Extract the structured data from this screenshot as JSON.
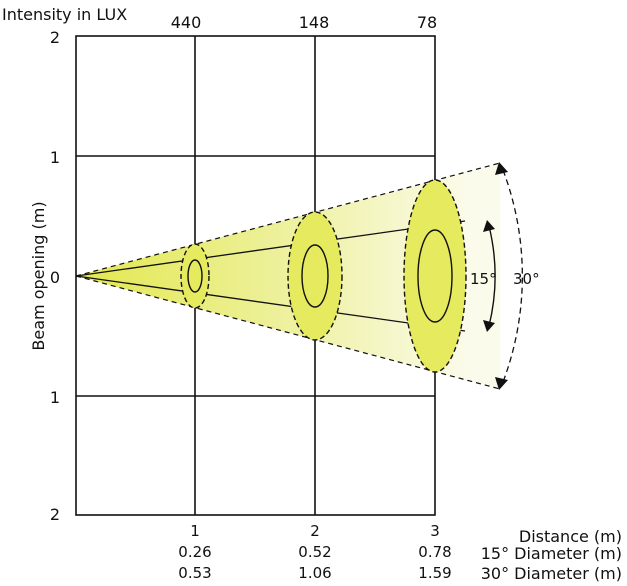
{
  "header": {
    "intensity_label": "Intensity in LUX",
    "lux": [
      "440",
      "148",
      "78"
    ]
  },
  "y_axis": {
    "label": "Beam opening (m)",
    "ticks": [
      "2",
      "1",
      "0",
      "1",
      "2"
    ]
  },
  "x_axis": {
    "ticks": [
      "1",
      "2",
      "3"
    ]
  },
  "rows": [
    {
      "label": "Distance (m)",
      "values": [
        "1",
        "2",
        "3"
      ]
    },
    {
      "label": "15° Diameter (m)",
      "values": [
        "0.26",
        "0.52",
        "0.78"
      ]
    },
    {
      "label": "30° Diameter (m)",
      "values": [
        "0.53",
        "1.06",
        "1.59"
      ]
    }
  ],
  "angles": {
    "narrow": "15°",
    "wide": "30°"
  },
  "colors": {
    "beam_fill": "#e5ea5e",
    "beam_fade": "#f7f8d8",
    "stroke": "#111111"
  }
}
